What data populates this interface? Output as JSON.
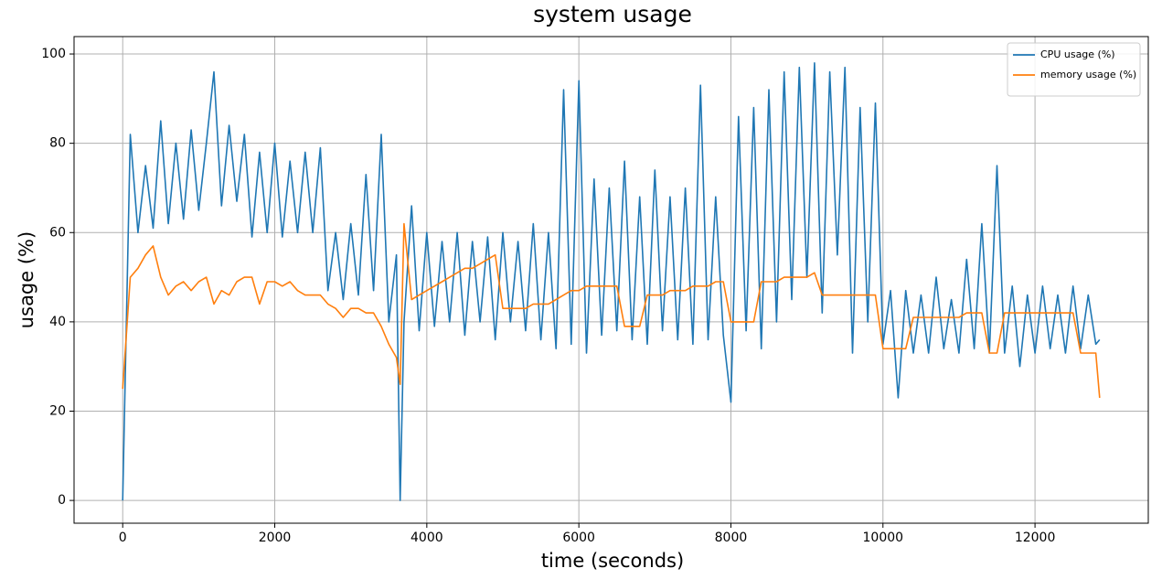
{
  "chart_data": {
    "type": "line",
    "title": "system usage",
    "x_label": "time (seconds)",
    "y_label": "usage (%)",
    "x": [
      0,
      100,
      200,
      300,
      400,
      500,
      600,
      700,
      800,
      900,
      1000,
      1100,
      1200,
      1300,
      1400,
      1500,
      1600,
      1700,
      1800,
      1900,
      2000,
      2100,
      2200,
      2300,
      2400,
      2500,
      2600,
      2700,
      2800,
      2900,
      3000,
      3100,
      3200,
      3300,
      3400,
      3500,
      3600,
      3650,
      3700,
      3800,
      3900,
      4000,
      4100,
      4200,
      4300,
      4400,
      4500,
      4600,
      4700,
      4800,
      4900,
      5000,
      5100,
      5200,
      5300,
      5400,
      5500,
      5600,
      5700,
      5800,
      5900,
      6000,
      6100,
      6200,
      6300,
      6400,
      6500,
      6600,
      6700,
      6800,
      6900,
      7000,
      7100,
      7200,
      7300,
      7400,
      7500,
      7600,
      7700,
      7800,
      7900,
      8000,
      8100,
      8200,
      8300,
      8400,
      8500,
      8600,
      8700,
      8800,
      8900,
      9000,
      9100,
      9200,
      9300,
      9400,
      9500,
      9600,
      9700,
      9800,
      9900,
      10000,
      10100,
      10200,
      10300,
      10400,
      10500,
      10600,
      10700,
      10800,
      10900,
      11000,
      11100,
      11200,
      11300,
      11400,
      11500,
      11600,
      11700,
      11800,
      11900,
      12000,
      12100,
      12200,
      12300,
      12400,
      12500,
      12600,
      12700,
      12800,
      12850
    ],
    "series": [
      {
        "name": "CPU usage (%)",
        "color": "#1f77b4",
        "values": [
          0,
          82,
          60,
          75,
          61,
          85,
          62,
          80,
          63,
          83,
          65,
          80,
          96,
          66,
          84,
          67,
          82,
          59,
          78,
          60,
          80,
          59,
          76,
          60,
          78,
          60,
          79,
          47,
          60,
          45,
          62,
          46,
          73,
          47,
          82,
          40,
          55,
          0,
          40,
          66,
          38,
          60,
          39,
          58,
          40,
          60,
          37,
          58,
          40,
          59,
          36,
          60,
          40,
          58,
          38,
          62,
          36,
          60,
          34,
          92,
          35,
          94,
          33,
          72,
          37,
          70,
          38,
          76,
          36,
          68,
          35,
          74,
          38,
          68,
          36,
          70,
          35,
          93,
          36,
          68,
          37,
          22,
          86,
          38,
          88,
          34,
          92,
          40,
          96,
          45,
          97,
          50,
          98,
          42,
          96,
          55,
          97,
          33,
          88,
          40,
          89,
          35,
          47,
          23,
          47,
          33,
          46,
          33,
          50,
          34,
          45,
          33,
          54,
          34,
          62,
          33,
          75,
          33,
          48,
          30,
          46,
          33,
          48,
          34,
          46,
          33,
          48,
          34,
          46,
          35,
          36
        ]
      },
      {
        "name": "memory usage (%)",
        "color": "#ff7f0e",
        "values": [
          25,
          50,
          52,
          55,
          57,
          50,
          46,
          48,
          49,
          47,
          49,
          50,
          44,
          47,
          46,
          49,
          50,
          50,
          44,
          49,
          49,
          48,
          49,
          47,
          46,
          46,
          46,
          44,
          43,
          41,
          43,
          43,
          42,
          42,
          39,
          35,
          32,
          26,
          62,
          45,
          46,
          47,
          48,
          49,
          50,
          51,
          52,
          52,
          53,
          54,
          55,
          43,
          43,
          43,
          43,
          44,
          44,
          44,
          45,
          46,
          47,
          47,
          48,
          48,
          48,
          48,
          48,
          39,
          39,
          39,
          46,
          46,
          46,
          47,
          47,
          47,
          48,
          48,
          48,
          49,
          49,
          40,
          40,
          40,
          40,
          49,
          49,
          49,
          50,
          50,
          50,
          50,
          51,
          46,
          46,
          46,
          46,
          46,
          46,
          46,
          46,
          34,
          34,
          34,
          34,
          41,
          41,
          41,
          41,
          41,
          41,
          41,
          42,
          42,
          42,
          33,
          33,
          42,
          42,
          42,
          42,
          42,
          42,
          42,
          42,
          42,
          42,
          33,
          33,
          33,
          23
        ]
      }
    ],
    "xlim": [
      -640,
      13490
    ],
    "ylim": [
      -5.1,
      103.9
    ],
    "xticks": [
      0,
      2000,
      4000,
      6000,
      8000,
      10000,
      12000
    ],
    "yticks": [
      0,
      20,
      40,
      60,
      80,
      100
    ],
    "grid": true,
    "legend": "upper right"
  }
}
